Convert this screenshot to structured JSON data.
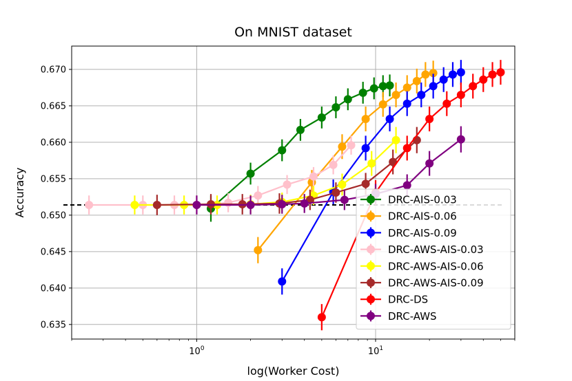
{
  "chart_data": {
    "type": "line",
    "title": "On MNIST dataset",
    "xlabel": "log(Worker Cost)",
    "ylabel": "Accuracy",
    "xscale": "log",
    "xlim": [
      0.2,
      60
    ],
    "ylim": [
      0.633,
      0.6732
    ],
    "x_ticks": [
      {
        "value": 1,
        "base": "10",
        "exp": "0"
      },
      {
        "value": 10,
        "base": "10",
        "exp": "1"
      }
    ],
    "y_ticks": [
      {
        "value": 0.635,
        "label": "0.635"
      },
      {
        "value": 0.64,
        "label": "0.640"
      },
      {
        "value": 0.645,
        "label": "0.645"
      },
      {
        "value": 0.65,
        "label": "0.650"
      },
      {
        "value": 0.655,
        "label": "0.655"
      },
      {
        "value": 0.66,
        "label": "0.660"
      },
      {
        "value": 0.665,
        "label": "0.665"
      },
      {
        "value": 0.67,
        "label": "0.670"
      }
    ],
    "grid": true,
    "legend_position": "lower-right",
    "baseline": {
      "y": 0.6514,
      "color": "#000000",
      "style": "dashed"
    },
    "series": [
      {
        "name": "DRC-AIS-0.03",
        "color": "#008000",
        "x": [
          1.2,
          2.0,
          3.0,
          3.8,
          5.0,
          6.0,
          7.0,
          8.5,
          9.8,
          11,
          12
        ],
        "y": [
          0.6509,
          0.6557,
          0.6589,
          0.6617,
          0.6634,
          0.6648,
          0.6659,
          0.6668,
          0.6674,
          0.6677,
          0.6678
        ],
        "err": [
          0.0018,
          0.0015,
          0.0015,
          0.0015,
          0.0015,
          0.0015,
          0.0015,
          0.0015,
          0.0015,
          0.0015,
          0.0015
        ]
      },
      {
        "name": "DRC-AIS-0.06",
        "color": "#FFA500",
        "x": [
          2.2,
          4.4,
          6.5,
          8.8,
          11,
          13,
          15,
          17,
          19,
          21
        ],
        "y": [
          0.6452,
          0.6545,
          0.6594,
          0.6632,
          0.6652,
          0.6665,
          0.6675,
          0.6684,
          0.6693,
          0.6695
        ],
        "err": [
          0.0018,
          0.0017,
          0.0017,
          0.0017,
          0.0017,
          0.0017,
          0.0017,
          0.0017,
          0.0017,
          0.0017
        ]
      },
      {
        "name": "DRC-AIS-0.09",
        "color": "#0000FF",
        "x": [
          3.0,
          5.8,
          8.8,
          12,
          15,
          18,
          21,
          24,
          27,
          30
        ],
        "y": [
          0.6409,
          0.6532,
          0.6592,
          0.6632,
          0.6653,
          0.6665,
          0.6677,
          0.6686,
          0.6693,
          0.6696
        ],
        "err": [
          0.0018,
          0.0017,
          0.0017,
          0.0017,
          0.0017,
          0.0017,
          0.0017,
          0.0017,
          0.0017,
          0.0017
        ]
      },
      {
        "name": "DRC-AWS-AIS-0.03",
        "color": "#FFC0CB",
        "x": [
          0.25,
          0.5,
          0.75,
          1.0,
          1.5,
          2.2,
          3.2,
          4.5,
          5.8,
          7.3
        ],
        "y": [
          0.6514,
          0.6514,
          0.6514,
          0.6514,
          0.6517,
          0.6527,
          0.6542,
          0.6553,
          0.6569,
          0.6596
        ],
        "err": [
          0.0013,
          0.0013,
          0.0013,
          0.0013,
          0.0013,
          0.0013,
          0.0013,
          0.0013,
          0.0013,
          0.0013
        ]
      },
      {
        "name": "DRC-AWS-AIS-0.06",
        "color": "#FFFF00",
        "x": [
          0.45,
          0.85,
          1.3,
          2.0,
          3.0,
          4.5,
          6.5,
          9.5,
          13
        ],
        "y": [
          0.6514,
          0.6514,
          0.6514,
          0.6515,
          0.6518,
          0.6527,
          0.6542,
          0.6571,
          0.6603
        ],
        "err": [
          0.0013,
          0.0013,
          0.0013,
          0.0013,
          0.0013,
          0.0013,
          0.0015,
          0.0017,
          0.0018
        ]
      },
      {
        "name": "DRC-AWS-AIS-0.09",
        "color": "#A52A2A",
        "x": [
          0.6,
          1.2,
          1.8,
          2.9,
          4.3,
          6.0,
          8.8,
          12.5,
          17
        ],
        "y": [
          0.6514,
          0.6515,
          0.6515,
          0.6516,
          0.6521,
          0.6531,
          0.6543,
          0.6573,
          0.6603
        ],
        "err": [
          0.0014,
          0.0014,
          0.0014,
          0.0014,
          0.0014,
          0.0014,
          0.0015,
          0.0017,
          0.0018
        ]
      },
      {
        "name": "DRC-DS",
        "color": "#FF0000",
        "x": [
          5.0,
          10,
          15,
          20,
          25,
          30,
          35,
          40,
          45,
          50
        ],
        "y": [
          0.636,
          0.6531,
          0.6592,
          0.6632,
          0.6653,
          0.6665,
          0.6677,
          0.6686,
          0.6693,
          0.6696
        ],
        "err": [
          0.0018,
          0.0017,
          0.0017,
          0.0017,
          0.0017,
          0.0017,
          0.0017,
          0.0017,
          0.0017,
          0.0017
        ]
      },
      {
        "name": "DRC-AWS",
        "color": "#800080",
        "x": [
          1.0,
          2.0,
          3.0,
          4.0,
          6.7,
          10,
          15,
          20,
          30
        ],
        "y": [
          0.6514,
          0.6514,
          0.6515,
          0.6516,
          0.6521,
          0.6529,
          0.6541,
          0.6571,
          0.6604
        ],
        "err": [
          0.0013,
          0.0013,
          0.0013,
          0.0013,
          0.0014,
          0.0014,
          0.0015,
          0.0017,
          0.0018
        ]
      }
    ]
  }
}
